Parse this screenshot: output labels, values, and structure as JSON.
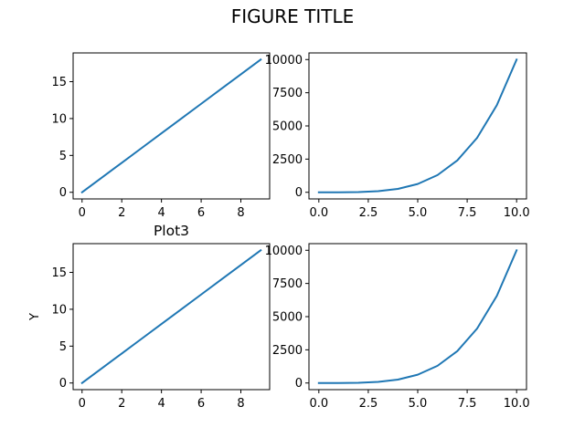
{
  "figure": {
    "title": "FIGURE TITLE"
  },
  "chart_data": [
    {
      "type": "line",
      "title": "",
      "xlabel": "",
      "ylabel": "",
      "x": [
        0,
        1,
        2,
        3,
        4,
        5,
        6,
        7,
        8,
        9
      ],
      "series": [
        {
          "values": [
            0,
            2,
            4,
            6,
            8,
            10,
            12,
            14,
            16,
            18
          ]
        }
      ],
      "xlim": [
        -0.45,
        9.45
      ],
      "ylim": [
        -0.9,
        18.9
      ],
      "xticks": [
        0,
        2,
        4,
        6,
        8
      ],
      "yticks": [
        0,
        5,
        10,
        15
      ],
      "xticklabels": [
        "0",
        "2",
        "4",
        "6",
        "8"
      ],
      "yticklabels": [
        "0",
        "5",
        "10",
        "15"
      ],
      "grid": false,
      "color": "#1f77b4"
    },
    {
      "type": "line",
      "title": "",
      "xlabel": "",
      "ylabel": "",
      "x": [
        0,
        1,
        2,
        3,
        4,
        5,
        6,
        7,
        8,
        9,
        10
      ],
      "series": [
        {
          "values": [
            0,
            1,
            16,
            81,
            256,
            625,
            1296,
            2401,
            4096,
            6561,
            10000
          ]
        }
      ],
      "xlim": [
        -0.5,
        10.5
      ],
      "ylim": [
        -500,
        10500
      ],
      "xticks": [
        0,
        2.5,
        5,
        7.5,
        10
      ],
      "yticks": [
        0,
        2500,
        5000,
        7500,
        10000
      ],
      "xticklabels": [
        "0.0",
        "2.5",
        "5.0",
        "7.5",
        "10.0"
      ],
      "yticklabels": [
        "0",
        "2500",
        "5000",
        "7500",
        "10000"
      ],
      "grid": false,
      "color": "#1f77b4"
    },
    {
      "type": "line",
      "title": "Plot3",
      "xlabel": "",
      "ylabel": "Y",
      "x": [
        0,
        1,
        2,
        3,
        4,
        5,
        6,
        7,
        8,
        9
      ],
      "series": [
        {
          "values": [
            0,
            2,
            4,
            6,
            8,
            10,
            12,
            14,
            16,
            18
          ]
        }
      ],
      "xlim": [
        -0.45,
        9.45
      ],
      "ylim": [
        -0.9,
        18.9
      ],
      "xticks": [
        0,
        2,
        4,
        6,
        8
      ],
      "yticks": [
        0,
        5,
        10,
        15
      ],
      "xticklabels": [
        "0",
        "2",
        "4",
        "6",
        "8"
      ],
      "yticklabels": [
        "0",
        "5",
        "10",
        "15"
      ],
      "grid": false,
      "color": "#1f77b4"
    },
    {
      "type": "line",
      "title": "",
      "xlabel": "",
      "ylabel": "",
      "x": [
        0,
        1,
        2,
        3,
        4,
        5,
        6,
        7,
        8,
        9,
        10
      ],
      "series": [
        {
          "values": [
            0,
            1,
            16,
            81,
            256,
            625,
            1296,
            2401,
            4096,
            6561,
            10000
          ]
        }
      ],
      "xlim": [
        -0.5,
        10.5
      ],
      "ylim": [
        -500,
        10500
      ],
      "xticks": [
        0,
        2.5,
        5,
        7.5,
        10
      ],
      "yticks": [
        0,
        2500,
        5000,
        7500,
        10000
      ],
      "xticklabels": [
        "0.0",
        "2.5",
        "5.0",
        "7.5",
        "10.0"
      ],
      "yticklabels": [
        "0",
        "2500",
        "5000",
        "7500",
        "10000"
      ],
      "grid": false,
      "color": "#1f77b4"
    }
  ]
}
